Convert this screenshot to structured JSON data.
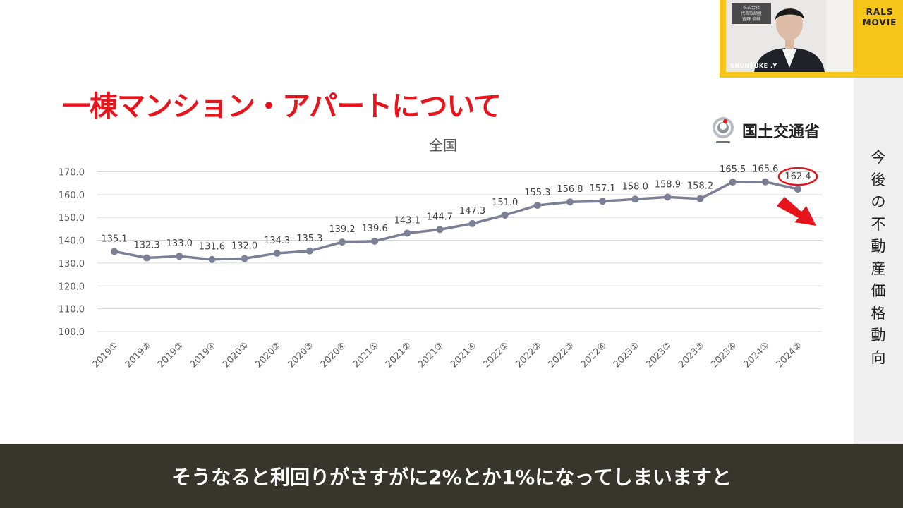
{
  "slide": {
    "title": "一棟マンション・アパートについて",
    "ministry": "国土交通省",
    "side_label": "今後の不動産価格動向"
  },
  "webcam": {
    "name": "SHUNSUKE .Y",
    "brand": "RALS MOVIE",
    "panel_text": "株式会社エジプト\n代表取締役\n吉野 俊輔"
  },
  "subtitle": "そうなると利回りがさすがに2%とか1%になってしまいますと",
  "colors": {
    "title": "#e8141c",
    "line": "#7b8097",
    "highlight": "#e8141c",
    "webcam_border": "#f5c51a",
    "subtitle_bg": "#38362c"
  },
  "chart_data": {
    "type": "line",
    "title": "全国",
    "categories": [
      "2019①",
      "2019②",
      "2019③",
      "2019④",
      "2020①",
      "2020②",
      "2020③",
      "2020④",
      "2021①",
      "2021②",
      "2021③",
      "2021④",
      "2022①",
      "2022②",
      "2022③",
      "2022④",
      "2023①",
      "2023②",
      "2023③",
      "2023④",
      "2024①",
      "2024②"
    ],
    "series": [
      {
        "values": [
          135.1,
          132.3,
          133.0,
          131.6,
          132.0,
          134.3,
          135.3,
          139.2,
          139.6,
          143.1,
          144.7,
          147.3,
          151.0,
          155.3,
          156.8,
          157.1,
          158.0,
          158.9,
          158.2,
          165.5,
          165.6,
          162.4
        ]
      }
    ],
    "data_labels": [
      "135.1",
      "132.3",
      "133.0",
      "131.6",
      "132.0",
      "134.3",
      "135.3",
      "139.2",
      "139.6",
      "143.1",
      "144.7",
      "147.3",
      "151.0",
      "155.3",
      "156.8",
      "157.1",
      "158.0",
      "158.9",
      "158.2",
      "165.5",
      "165.6",
      "162.4"
    ],
    "y_ticks": [
      "100.0",
      "110.0",
      "120.0",
      "130.0",
      "140.0",
      "150.0",
      "160.0",
      "170.0"
    ],
    "ylim": [
      100,
      170
    ],
    "grid": true,
    "highlighted_point": "2024②",
    "trend_arrow": "down"
  }
}
